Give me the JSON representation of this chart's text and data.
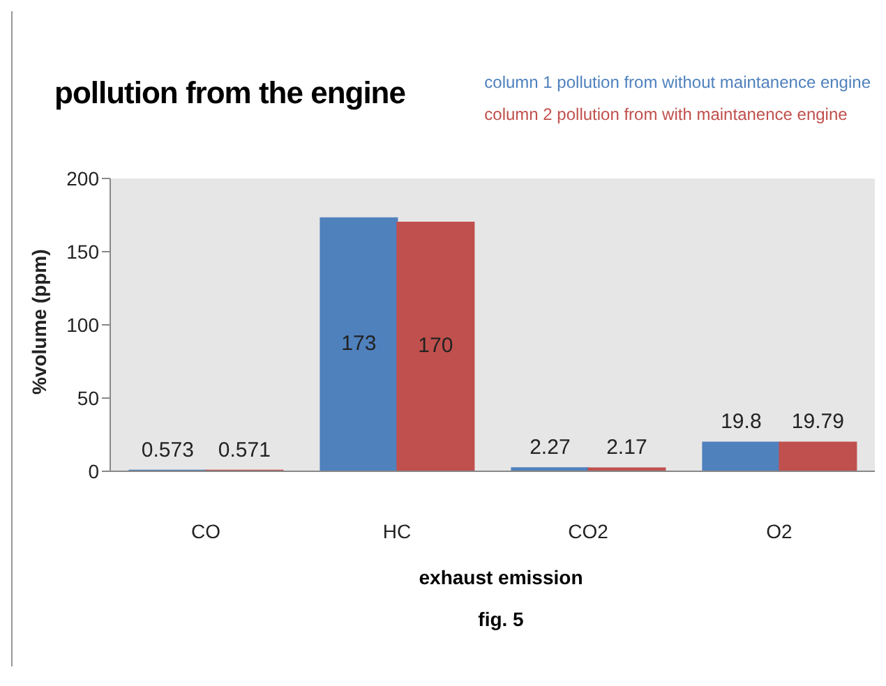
{
  "chart_data": {
    "type": "bar",
    "title": "pollution from the engine",
    "xlabel": "exhaust emission",
    "ylabel": "%volume (ppm)",
    "annotations": [
      "fig. 5"
    ],
    "categories": [
      "CO",
      "HC",
      "CO2",
      "O2"
    ],
    "series": [
      {
        "name": "column 1 pollution from without maintanence engine",
        "color": "#4f81bd",
        "values": [
          0.573,
          173,
          2.27,
          19.8
        ]
      },
      {
        "name": "column 2 pollution from with maintanence engine",
        "color": "#c0504d",
        "values": [
          0.571,
          170,
          2.17,
          19.79
        ]
      }
    ],
    "ylim": [
      0,
      200
    ],
    "yticks": [
      0,
      50,
      100,
      150,
      200
    ],
    "grid": false,
    "legend": "top right",
    "data_labels": true
  }
}
